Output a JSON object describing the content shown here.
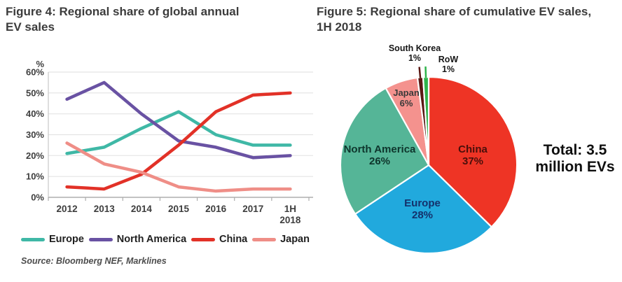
{
  "figure4": {
    "title_lines": [
      "Figure 4: Regional share of global annual",
      "EV sales"
    ],
    "source": "Source: Bloomberg NEF, Marklines"
  },
  "figure5": {
    "title_lines": [
      "Figure 5: Regional share of cumulative EV sales,",
      "1H 2018"
    ],
    "total_lines": [
      "Total: 3.5",
      "million EVs"
    ]
  },
  "chart_data": [
    {
      "figure": "Figure 4",
      "type": "line",
      "title": "Figure 4: Regional share of global annual EV sales",
      "x_categories": [
        "2012",
        "2013",
        "2014",
        "2015",
        "2016",
        "2017",
        "1H 2018"
      ],
      "unit": "%",
      "ylim": [
        0,
        60
      ],
      "ytick_step": 10,
      "y_tick_labels": [
        "0%",
        "10%",
        "20%",
        "30%",
        "40%",
        "50%",
        "60%"
      ],
      "grid": true,
      "legend_position": "bottom",
      "series": [
        {
          "name": "Europe",
          "color": "#3FB8A6",
          "values": [
            21,
            24,
            33,
            41,
            30,
            25,
            25
          ]
        },
        {
          "name": "North America",
          "color": "#6952A3",
          "values": [
            47,
            55,
            40,
            27,
            24,
            19,
            20
          ]
        },
        {
          "name": "China",
          "color": "#E23127",
          "values": [
            5,
            4,
            11,
            25,
            41,
            49,
            50
          ]
        },
        {
          "name": "Japan",
          "color": "#EF8E87",
          "values": [
            26,
            16,
            12,
            5,
            3,
            4,
            4
          ]
        }
      ],
      "source": "Source: Bloomberg NEF, Marklines"
    },
    {
      "figure": "Figure 5",
      "type": "pie",
      "title": "Figure 5: Regional share of cumulative EV sales, 1H 2018",
      "total_annotation": "Total: 3.5 million EVs",
      "slices": [
        {
          "name": "China",
          "pct": 37,
          "color": "#EE3425",
          "label_color": "#4A0F0B"
        },
        {
          "name": "Europe",
          "pct": 28,
          "color": "#21A9DD",
          "label_color": "#14316B"
        },
        {
          "name": "North America",
          "pct": 26,
          "color": "#55B597",
          "label_color": "#0E352C"
        },
        {
          "name": "Japan",
          "pct": 6,
          "color": "#F4928E",
          "label_color": "#3A3A3A"
        },
        {
          "name": "South Korea",
          "pct": 1,
          "color": "#5A1813",
          "label_color": "#161616"
        },
        {
          "name": "RoW",
          "pct": 1,
          "color": "#2FB44B",
          "label_color": "#161616"
        }
      ]
    }
  ]
}
